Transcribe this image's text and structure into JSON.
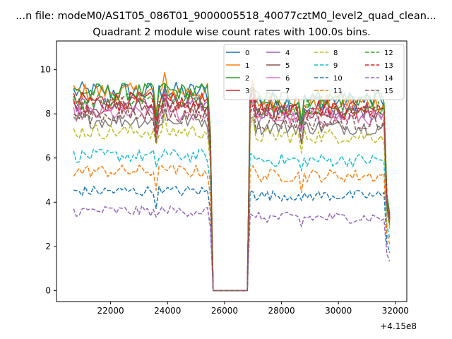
{
  "chart_data": {
    "type": "line",
    "suptitle": "...n file: modeM0/AS1T05_086T01_9000005518_40077cztM0_level2_quad_clean...",
    "title": "Quadrant 2 module wise count rates with 100.0s bins.",
    "xlabel": "",
    "ylabel": "",
    "x_offset_label": "+4.15e8",
    "xlim": [
      20100,
      32400
    ],
    "ylim": [
      -0.5,
      11.3
    ],
    "x_ticks": [
      22000,
      24000,
      26000,
      28000,
      30000,
      32000
    ],
    "y_ticks": [
      0,
      2,
      4,
      6,
      8,
      10
    ],
    "x_tick_labels": [
      "22000",
      "24000",
      "26000",
      "28000",
      "30000",
      "32000"
    ],
    "y_tick_labels": [
      "0",
      "2",
      "4",
      "6",
      "8",
      "10"
    ],
    "legend": {
      "position": "top-right",
      "ncol": 4,
      "entries": [
        "0",
        "1",
        "2",
        "3",
        "4",
        "5",
        "6",
        "7",
        "8",
        "9",
        "10",
        "11",
        "12",
        "13",
        "14",
        "15"
      ]
    },
    "time_grid": {
      "start": 20700,
      "end": 31800,
      "step": 100
    },
    "gap": [
      25600,
      26800
    ],
    "series": [
      {
        "name": "0",
        "color": "#1f77b4",
        "style": "solid",
        "base": 9.0,
        "base2": 8.6,
        "amp": 0.45
      },
      {
        "name": "1",
        "color": "#ff7f0e",
        "style": "solid",
        "base": 9.0,
        "base2": 8.5,
        "amp": 0.4
      },
      {
        "name": "2",
        "color": "#2ca02c",
        "style": "solid",
        "base": 9.0,
        "base2": 8.7,
        "amp": 0.4
      },
      {
        "name": "3",
        "color": "#d62728",
        "style": "solid",
        "base": 8.6,
        "base2": 8.3,
        "amp": 0.4
      },
      {
        "name": "4",
        "color": "#9467bd",
        "style": "solid",
        "base": 8.4,
        "base2": 8.1,
        "amp": 0.35
      },
      {
        "name": "5",
        "color": "#8c564b",
        "style": "solid",
        "base": 8.3,
        "base2": 8.0,
        "amp": 0.35
      },
      {
        "name": "6",
        "color": "#e377c2",
        "style": "solid",
        "base": 8.0,
        "base2": 7.8,
        "amp": 0.35
      },
      {
        "name": "7",
        "color": "#7f7f7f",
        "style": "solid",
        "base": 7.7,
        "base2": 7.4,
        "amp": 0.35
      },
      {
        "name": "8",
        "color": "#bcbd22",
        "style": "dashed",
        "base": 7.2,
        "base2": 7.0,
        "amp": 0.35
      },
      {
        "name": "9",
        "color": "#17becf",
        "style": "dashed",
        "base": 6.1,
        "base2": 5.9,
        "amp": 0.3
      },
      {
        "name": "10",
        "color": "#1f77b4",
        "style": "dashed",
        "base": 4.5,
        "base2": 4.3,
        "amp": 0.25
      },
      {
        "name": "11",
        "color": "#ff7f0e",
        "style": "dashed",
        "base": 5.4,
        "base2": 5.2,
        "amp": 0.3
      },
      {
        "name": "12",
        "color": "#2ca02c",
        "style": "dashed",
        "base": 8.6,
        "base2": 8.3,
        "amp": 0.35
      },
      {
        "name": "13",
        "color": "#d62728",
        "style": "dashed",
        "base": 8.4,
        "base2": 8.1,
        "amp": 0.35
      },
      {
        "name": "14",
        "color": "#9467bd",
        "style": "dashed",
        "base": 3.6,
        "base2": 3.3,
        "amp": 0.25
      },
      {
        "name": "15",
        "color": "#8c564b",
        "style": "dashed",
        "base": 7.9,
        "base2": 7.6,
        "amp": 0.35
      }
    ]
  }
}
